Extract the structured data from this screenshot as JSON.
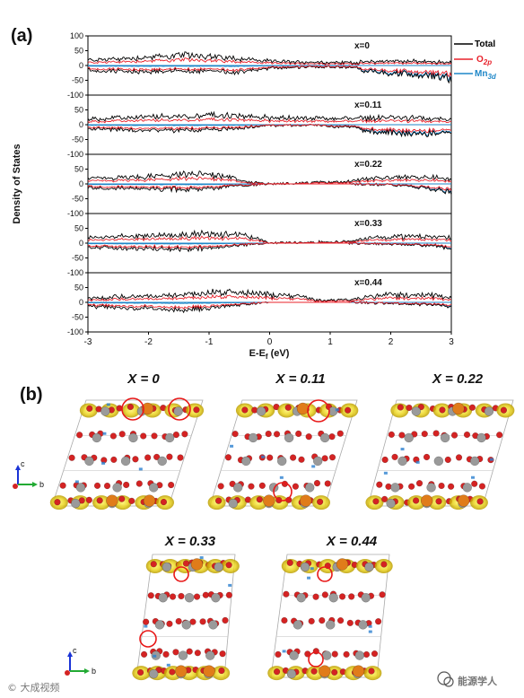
{
  "figure": {
    "panel_a_label": "(a)",
    "panel_b_label": "(b)",
    "watermark_left": "© 大成视频",
    "watermark_right": "能源学人"
  },
  "chart_data": {
    "type": "line",
    "xlabel": "E-Ef (eV)",
    "ylabel": "Density of States",
    "xlim": [
      -3,
      3
    ],
    "ylim": [
      -100,
      100
    ],
    "xticks": [
      -3,
      -2,
      -1,
      0,
      1,
      2,
      3
    ],
    "yticks": [
      -100,
      -50,
      0,
      50,
      100
    ],
    "grid": false,
    "legend": {
      "placement": "top-right",
      "entries": [
        {
          "key": "total",
          "label": "Total",
          "color": "#000000"
        },
        {
          "key": "o2p",
          "label": "O2p",
          "color": "#e8202a"
        },
        {
          "key": "mn3d",
          "label": "Mn3d",
          "color": "#1f87c8"
        }
      ]
    },
    "panels": [
      {
        "label": "x=0",
        "occupied_up": [
          [
            -3,
            18
          ],
          [
            -2.5,
            22
          ],
          [
            -2,
            28
          ],
          [
            -1.5,
            33
          ],
          [
            -1.2,
            36
          ],
          [
            -1,
            30
          ],
          [
            -0.6,
            25
          ],
          [
            -0.3,
            20
          ],
          [
            0,
            14
          ],
          [
            0.5,
            12
          ],
          [
            1,
            10
          ],
          [
            1.4,
            10
          ],
          [
            1.7,
            14
          ],
          [
            2,
            15
          ],
          [
            2.4,
            14
          ],
          [
            2.8,
            12
          ],
          [
            3,
            10
          ]
        ],
        "spin_down": [
          [
            -3,
            -15
          ],
          [
            -2.5,
            -20
          ],
          [
            -2,
            -22
          ],
          [
            -1.5,
            -18
          ],
          [
            -1,
            -20
          ],
          [
            -0.6,
            -22
          ],
          [
            -0.3,
            -18
          ],
          [
            0,
            -8
          ],
          [
            0.8,
            -4
          ],
          [
            1.4,
            -6
          ],
          [
            1.6,
            -20
          ],
          [
            2,
            -28
          ],
          [
            2.4,
            -30
          ],
          [
            2.8,
            -40
          ],
          [
            3,
            -45
          ]
        ]
      },
      {
        "label": "x=0.11",
        "occupied_up": [
          [
            -3,
            18
          ],
          [
            -2.5,
            22
          ],
          [
            -2,
            26
          ],
          [
            -1.5,
            28
          ],
          [
            -1.2,
            30
          ],
          [
            -1,
            32
          ],
          [
            -0.6,
            30
          ],
          [
            -0.3,
            26
          ],
          [
            0,
            24
          ],
          [
            0.5,
            22
          ],
          [
            1,
            20
          ],
          [
            1.4,
            22
          ],
          [
            1.7,
            24
          ],
          [
            2,
            24
          ],
          [
            2.4,
            22
          ],
          [
            2.8,
            20
          ],
          [
            3,
            18
          ]
        ],
        "spin_down": [
          [
            -3,
            -14
          ],
          [
            -2.5,
            -16
          ],
          [
            -2,
            -18
          ],
          [
            -1.5,
            -18
          ],
          [
            -1,
            -16
          ],
          [
            -0.6,
            -14
          ],
          [
            -0.3,
            -8
          ],
          [
            0,
            -3
          ],
          [
            0.8,
            -2
          ],
          [
            1.4,
            -10
          ],
          [
            1.6,
            -22
          ],
          [
            2,
            -28
          ],
          [
            2.4,
            -30
          ],
          [
            2.8,
            -28
          ],
          [
            3,
            -26
          ]
        ]
      },
      {
        "label": "x=0.22",
        "occupied_up": [
          [
            -3,
            18
          ],
          [
            -2.5,
            20
          ],
          [
            -2,
            24
          ],
          [
            -1.5,
            30
          ],
          [
            -1.2,
            34
          ],
          [
            -1,
            32
          ],
          [
            -0.7,
            28
          ],
          [
            -0.5,
            10
          ],
          [
            0,
            0
          ],
          [
            1.3,
            8
          ],
          [
            1.7,
            18
          ],
          [
            2,
            22
          ],
          [
            2.4,
            24
          ],
          [
            2.8,
            20
          ],
          [
            3,
            16
          ]
        ],
        "spin_down": [
          [
            -3,
            -12
          ],
          [
            -2.5,
            -14
          ],
          [
            -2,
            -16
          ],
          [
            -1.5,
            -18
          ],
          [
            -1,
            -16
          ],
          [
            -0.7,
            -8
          ],
          [
            0,
            0
          ],
          [
            1.3,
            0
          ],
          [
            2,
            -3
          ],
          [
            2.4,
            -10
          ],
          [
            2.8,
            -20
          ],
          [
            3,
            -30
          ]
        ]
      },
      {
        "label": "x=0.33",
        "occupied_up": [
          [
            -3,
            20
          ],
          [
            -2.5,
            22
          ],
          [
            -2,
            26
          ],
          [
            -1.5,
            28
          ],
          [
            -1.2,
            32
          ],
          [
            -1,
            30
          ],
          [
            -0.5,
            28
          ],
          [
            -0.2,
            16
          ],
          [
            0,
            0
          ],
          [
            1.3,
            6
          ],
          [
            1.7,
            20
          ],
          [
            2,
            22
          ],
          [
            2.4,
            22
          ],
          [
            2.8,
            20
          ],
          [
            3,
            18
          ]
        ],
        "spin_down": [
          [
            -3,
            -14
          ],
          [
            -2.5,
            -16
          ],
          [
            -2,
            -18
          ],
          [
            -1.5,
            -20
          ],
          [
            -1,
            -18
          ],
          [
            -0.6,
            -8
          ],
          [
            0,
            0
          ],
          [
            1.3,
            0
          ],
          [
            2,
            -4
          ],
          [
            2.4,
            -6
          ],
          [
            2.8,
            -10
          ],
          [
            3,
            -20
          ]
        ]
      },
      {
        "label": "x=0.44",
        "occupied_up": [
          [
            -3,
            14
          ],
          [
            -2.5,
            18
          ],
          [
            -2,
            20
          ],
          [
            -1.5,
            26
          ],
          [
            -1.2,
            30
          ],
          [
            -1,
            34
          ],
          [
            -0.6,
            34
          ],
          [
            -0.3,
            30
          ],
          [
            0,
            26
          ],
          [
            0.5,
            22
          ],
          [
            0.8,
            6
          ],
          [
            1.3,
            10
          ],
          [
            1.7,
            22
          ],
          [
            2,
            26
          ],
          [
            2.4,
            24
          ],
          [
            2.8,
            22
          ],
          [
            3,
            16
          ]
        ],
        "spin_down": [
          [
            -3,
            -14
          ],
          [
            -2.5,
            -18
          ],
          [
            -2,
            -20
          ],
          [
            -1.5,
            -26
          ],
          [
            -1,
            -20
          ],
          [
            -0.6,
            -10
          ],
          [
            0,
            0
          ],
          [
            1.3,
            0
          ],
          [
            2,
            -4
          ],
          [
            2.4,
            -6
          ],
          [
            2.8,
            -10
          ],
          [
            3,
            -14
          ]
        ]
      }
    ]
  },
  "structures": {
    "labels": [
      "X = 0",
      "X = 0.11",
      "X = 0.22",
      "X = 0.33",
      "X = 0.44"
    ],
    "axis_c": "c",
    "axis_b": "b"
  }
}
